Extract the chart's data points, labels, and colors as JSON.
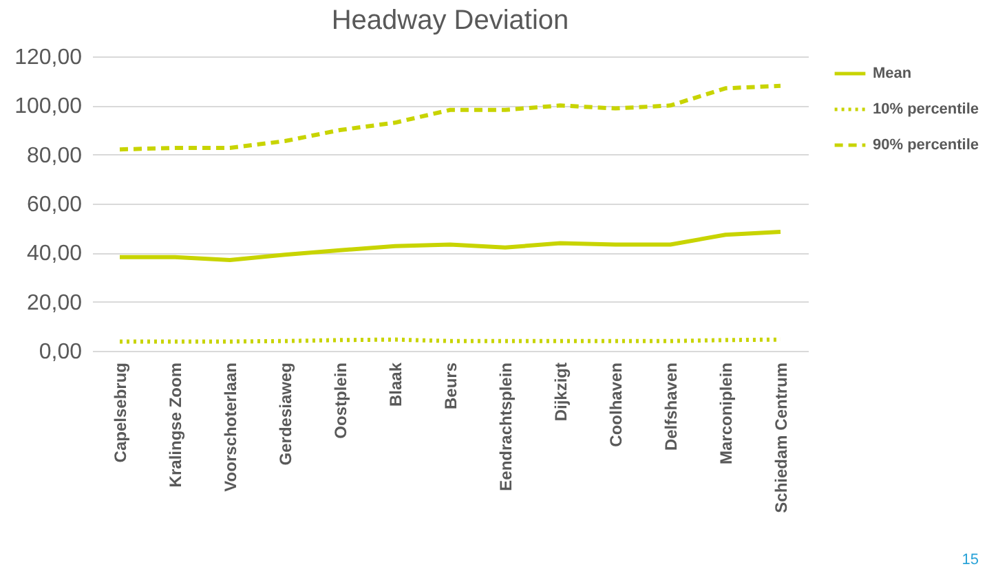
{
  "chart_data": {
    "type": "line",
    "title": "Headway Deviation",
    "categories": [
      "Capelsebrug",
      "Kralingse Zoom",
      "Voorschoterlaan",
      "Gerdesiaweg",
      "Oostplein",
      "Blaak",
      "Beurs",
      "Eendrachtsplein",
      "Dijkzigt",
      "Coolhaven",
      "Delfshaven",
      "Marconiplein",
      "Schiedam Centrum"
    ],
    "series": [
      {
        "name": "Mean",
        "color": "#c8d400",
        "line_style": "solid",
        "values": [
          38.2,
          38.2,
          37.0,
          39.2,
          41.0,
          42.7,
          43.3,
          42.1,
          43.9,
          43.3,
          43.3,
          47.3,
          48.5
        ]
      },
      {
        "name": "10% percentile",
        "color": "#c8d400",
        "line_style": "dotted",
        "values": [
          3.8,
          3.8,
          3.8,
          4.0,
          4.4,
          4.6,
          4.0,
          4.0,
          4.0,
          4.0,
          4.0,
          4.4,
          4.6
        ]
      },
      {
        "name": "90% percentile",
        "color": "#c8d400",
        "line_style": "dashed",
        "values": [
          82.1,
          82.7,
          82.7,
          85.5,
          90.0,
          93.0,
          98.2,
          98.2,
          100.0,
          98.8,
          100.0,
          107.0,
          108.0
        ]
      }
    ],
    "ylim": [
      0,
      120
    ],
    "yticks": [
      {
        "value": 0,
        "label": "0,00"
      },
      {
        "value": 20,
        "label": "20,00"
      },
      {
        "value": 40,
        "label": "40,00"
      },
      {
        "value": 60,
        "label": "60,00"
      },
      {
        "value": 80,
        "label": "80,00"
      },
      {
        "value": 100,
        "label": "100,00"
      },
      {
        "value": 120,
        "label": "120,00"
      }
    ],
    "grid": "y",
    "legend": "right",
    "marker": "none",
    "annotations": [
      "15"
    ]
  }
}
